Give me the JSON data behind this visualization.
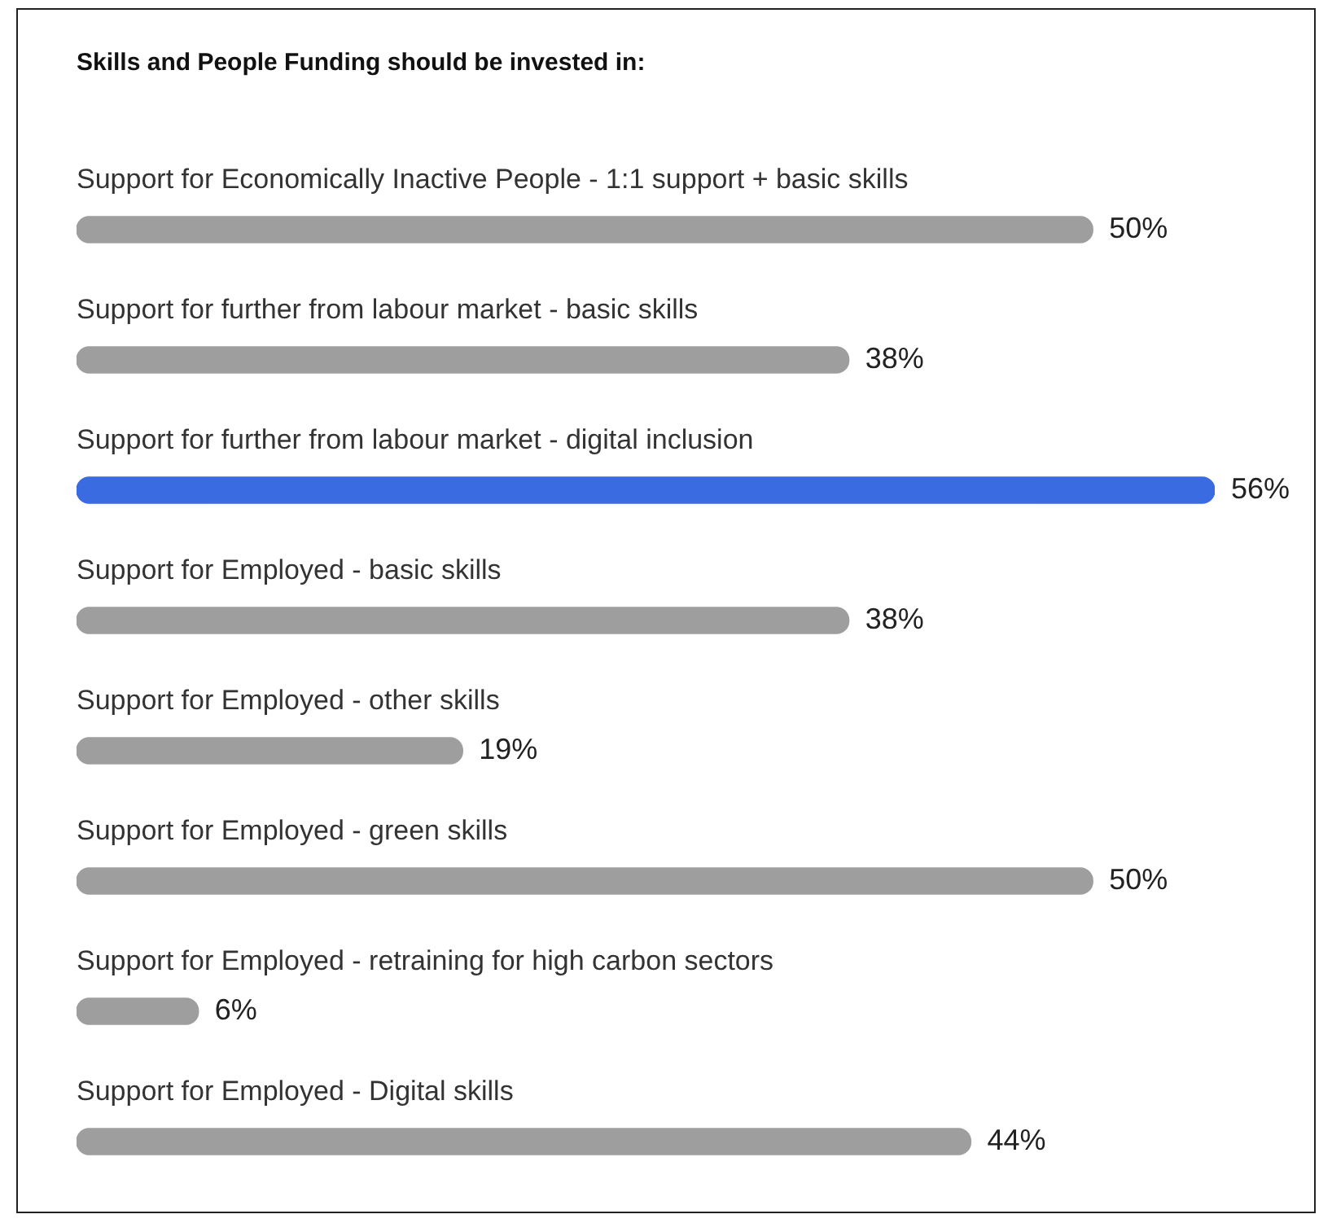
{
  "chart_data": {
    "type": "bar",
    "orientation": "horizontal",
    "title": "Skills and People Funding should be invested in:",
    "categories": [
      "Support for Economically Inactive People - 1:1 support + basic skills",
      "Support for further from labour market - basic skills",
      "Support for further from labour market - digital inclusion",
      "Support for Employed - basic skills",
      "Support for Employed - other skills",
      "Support for Employed - green skills",
      "Support for Employed - retraining for high carbon sectors",
      "Support for Employed - Digital skills"
    ],
    "values": [
      50,
      38,
      56,
      38,
      19,
      50,
      6,
      44
    ],
    "value_labels": [
      "50%",
      "38%",
      "56%",
      "38%",
      "19%",
      "50%",
      "6%",
      "44%"
    ],
    "colors": [
      "#9e9e9e",
      "#9e9e9e",
      "#3b6be0",
      "#9e9e9e",
      "#9e9e9e",
      "#9e9e9e",
      "#9e9e9e",
      "#9e9e9e"
    ]
  }
}
